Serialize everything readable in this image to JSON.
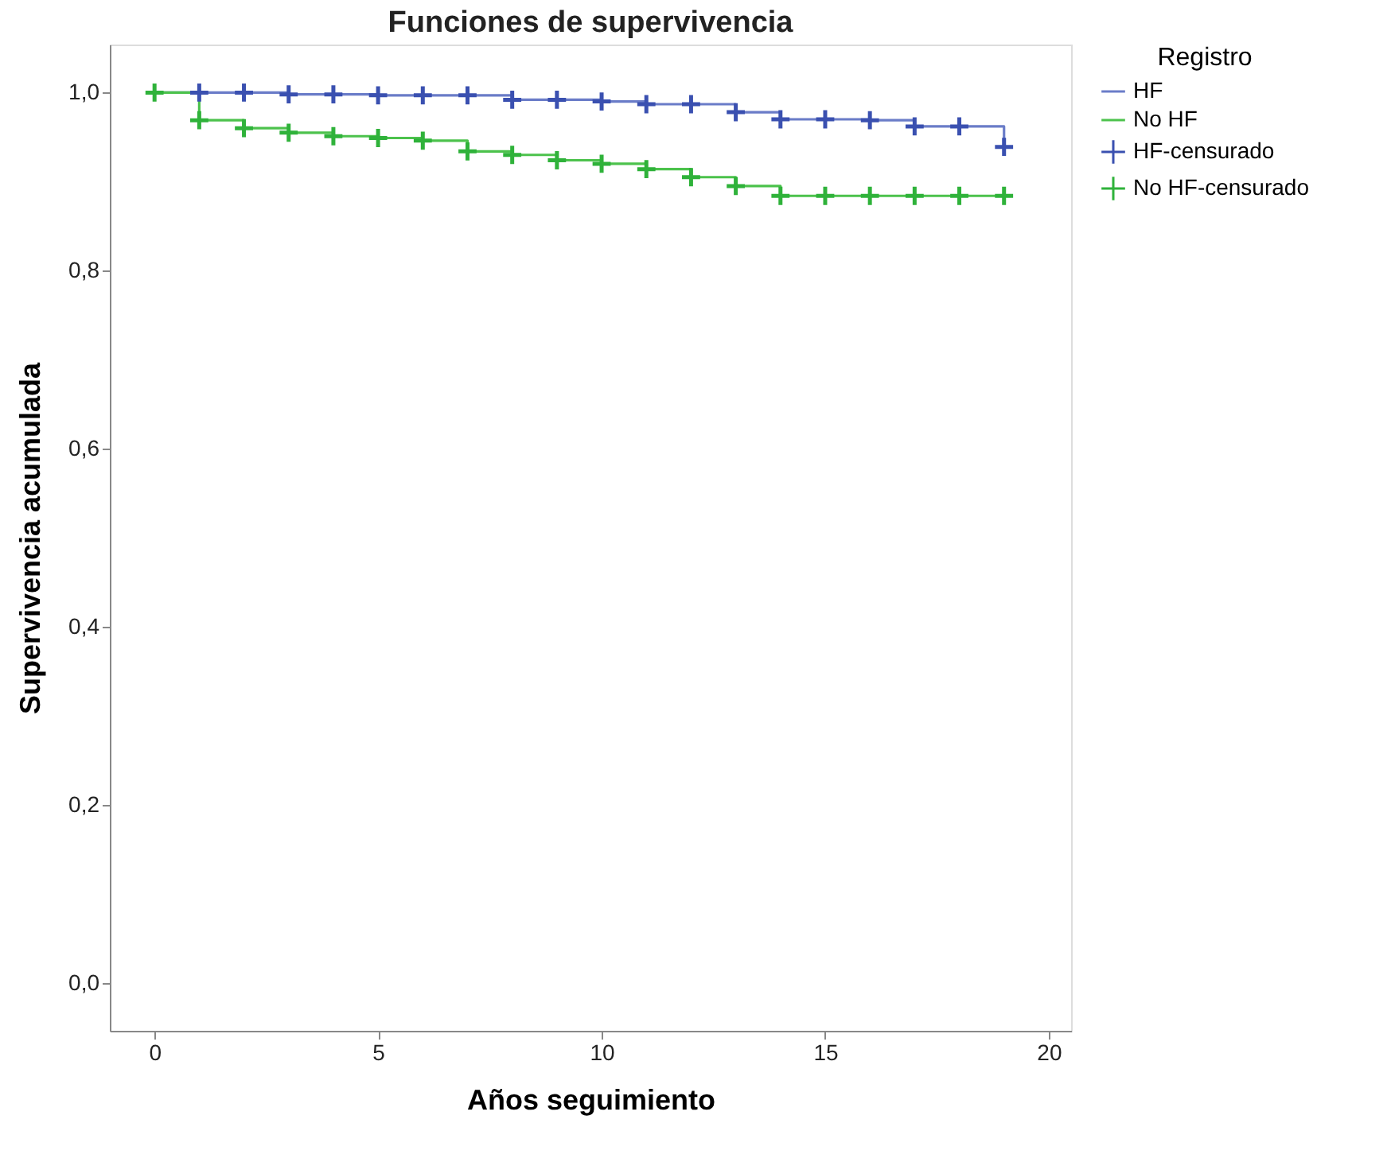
{
  "chart_data": {
    "type": "step",
    "title": "Funciones de supervivencia",
    "xlabel": "Años seguimiento",
    "ylabel": "Supervivencia acumulada",
    "legend_title": "Registro",
    "legend": "top right",
    "grid": false,
    "xlim": [
      -1,
      20.5
    ],
    "xticks": [
      0,
      5,
      10,
      15,
      20
    ],
    "ylim": [
      -0.054,
      1.054
    ],
    "yticks": [
      {
        "value": 0,
        "label": "0,0"
      },
      {
        "value": 0.2,
        "label": "0,2"
      },
      {
        "value": 0.4,
        "label": "0,4"
      },
      {
        "value": 0.6,
        "label": "0,6"
      },
      {
        "value": 0.8,
        "label": "0,8"
      },
      {
        "value": 1.0,
        "label": "1,0"
      }
    ],
    "series": [
      {
        "name": "HF",
        "color": "#6a7cc8",
        "x": [
          0,
          1,
          2,
          3,
          4,
          5,
          6,
          7,
          8,
          9,
          10,
          11,
          12,
          13,
          14,
          15,
          16,
          17,
          18,
          19
        ],
        "values": [
          1.0,
          1.0,
          1.0,
          0.998,
          0.998,
          0.997,
          0.997,
          0.997,
          0.992,
          0.992,
          0.99,
          0.987,
          0.987,
          0.978,
          0.97,
          0.97,
          0.969,
          0.962,
          0.962,
          0.939
        ]
      },
      {
        "name": "No HF",
        "color": "#4cc24c",
        "x": [
          0,
          1,
          2,
          3,
          4,
          5,
          6,
          7,
          8,
          9,
          10,
          11,
          12,
          13,
          14,
          15,
          16,
          17,
          18,
          19
        ],
        "values": [
          1.0,
          0.969,
          0.96,
          0.955,
          0.951,
          0.949,
          0.946,
          0.934,
          0.93,
          0.924,
          0.92,
          0.914,
          0.905,
          0.895,
          0.884,
          0.884,
          0.884,
          0.884,
          0.884,
          0.884
        ]
      },
      {
        "name": "HF-censurado",
        "type": "scatter",
        "marker": "cross",
        "color": "#3a50b0",
        "x": [
          1,
          2,
          3,
          4,
          5,
          6,
          7,
          8,
          9,
          10,
          11,
          12,
          13,
          14,
          15,
          16,
          17,
          18,
          19
        ],
        "values": [
          1.0,
          1.0,
          0.998,
          0.998,
          0.997,
          0.997,
          0.997,
          0.992,
          0.992,
          0.99,
          0.987,
          0.987,
          0.978,
          0.97,
          0.97,
          0.969,
          0.962,
          0.962,
          0.939
        ]
      },
      {
        "name": "No HF-censurado",
        "type": "scatter",
        "marker": "cross",
        "color": "#2fb23a",
        "x": [
          0,
          1,
          2,
          3,
          4,
          5,
          6,
          7,
          8,
          9,
          10,
          11,
          12,
          13,
          14,
          15,
          16,
          17,
          18,
          19
        ],
        "values": [
          1.0,
          0.969,
          0.96,
          0.955,
          0.951,
          0.949,
          0.946,
          0.934,
          0.93,
          0.924,
          0.92,
          0.914,
          0.905,
          0.895,
          0.884,
          0.884,
          0.884,
          0.884,
          0.884,
          0.884
        ]
      }
    ]
  }
}
